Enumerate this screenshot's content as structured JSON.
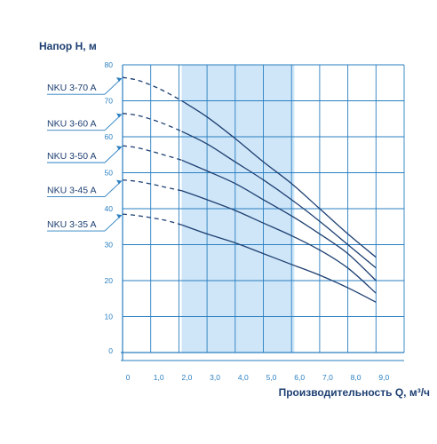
{
  "chart_data": {
    "type": "line",
    "ylabel": "Напор H, м",
    "xlabel": "Производительность Q, м³/ч",
    "xlim": [
      0,
      10
    ],
    "ylim": [
      0,
      80
    ],
    "x_ticks": [
      "0",
      "1,0",
      "2,0",
      "3,0",
      "4,0",
      "5,0",
      "6,0",
      "7,0",
      "8,0",
      "9,0"
    ],
    "y_ticks": [
      "0",
      "10",
      "20",
      "30",
      "40",
      "50",
      "60",
      "70",
      "80"
    ],
    "highlight_range": [
      2.1,
      6.1
    ],
    "grid": true,
    "colors": {
      "curve": "#1d3f72",
      "grid": "#2a7fc1",
      "highlight": "#cfe6f8",
      "tick_text": "#2a7fc1",
      "label_text": "#1d3f72"
    },
    "series": [
      {
        "name": "NKU 3-70 A",
        "dashed": {
          "x": [
            0,
            0.5,
            1.0,
            1.5,
            2.1
          ],
          "y": [
            76.5,
            75.8,
            74.4,
            72.6,
            70.0
          ]
        },
        "solid": {
          "x": [
            2.1,
            3.0,
            4.0,
            5.0,
            6.0,
            7.0,
            8.0,
            9.0
          ],
          "y": [
            70.0,
            65.5,
            59.5,
            53.0,
            47.0,
            40.0,
            33.0,
            26.5
          ]
        }
      },
      {
        "name": "NKU 3-60 A",
        "dashed": {
          "x": [
            0,
            0.5,
            1.0,
            1.5,
            2.1
          ],
          "y": [
            66.5,
            66.0,
            64.9,
            63.5,
            61.5
          ]
        },
        "solid": {
          "x": [
            2.1,
            3.0,
            4.0,
            5.0,
            6.0,
            7.0,
            8.0,
            9.0
          ],
          "y": [
            61.5,
            58.0,
            53.0,
            48.0,
            42.5,
            36.5,
            30.0,
            23.5
          ]
        }
      },
      {
        "name": "NKU 3-50 A",
        "dashed": {
          "x": [
            0,
            0.5,
            1.0,
            1.5,
            2.1
          ],
          "y": [
            57.5,
            57.0,
            56.0,
            54.9,
            53.5
          ]
        },
        "solid": {
          "x": [
            2.1,
            3.0,
            4.0,
            5.0,
            6.0,
            7.0,
            8.0,
            9.0
          ],
          "y": [
            53.5,
            50.5,
            47.0,
            42.5,
            38.0,
            33.0,
            27.5,
            20.0
          ]
        }
      },
      {
        "name": "NKU 3-45 A",
        "dashed": {
          "x": [
            0,
            0.5,
            1.0,
            1.5,
            2.1
          ],
          "y": [
            48.0,
            47.6,
            46.9,
            46.0,
            45.0
          ]
        },
        "solid": {
          "x": [
            2.1,
            3.0,
            4.0,
            5.0,
            6.0,
            7.0,
            8.0,
            9.0
          ],
          "y": [
            45.0,
            42.5,
            39.5,
            36.0,
            32.5,
            28.5,
            23.5,
            16.5
          ]
        }
      },
      {
        "name": "NKU 3-35 A",
        "dashed": {
          "x": [
            0,
            0.5,
            1.0,
            1.5,
            2.1
          ],
          "y": [
            38.5,
            38.1,
            37.5,
            36.8,
            35.5
          ]
        },
        "solid": {
          "x": [
            2.1,
            3.0,
            4.0,
            5.0,
            6.0,
            7.0,
            8.0,
            9.0
          ],
          "y": [
            35.5,
            33.0,
            30.5,
            27.5,
            24.5,
            21.5,
            18.0,
            14.0
          ]
        }
      }
    ]
  }
}
